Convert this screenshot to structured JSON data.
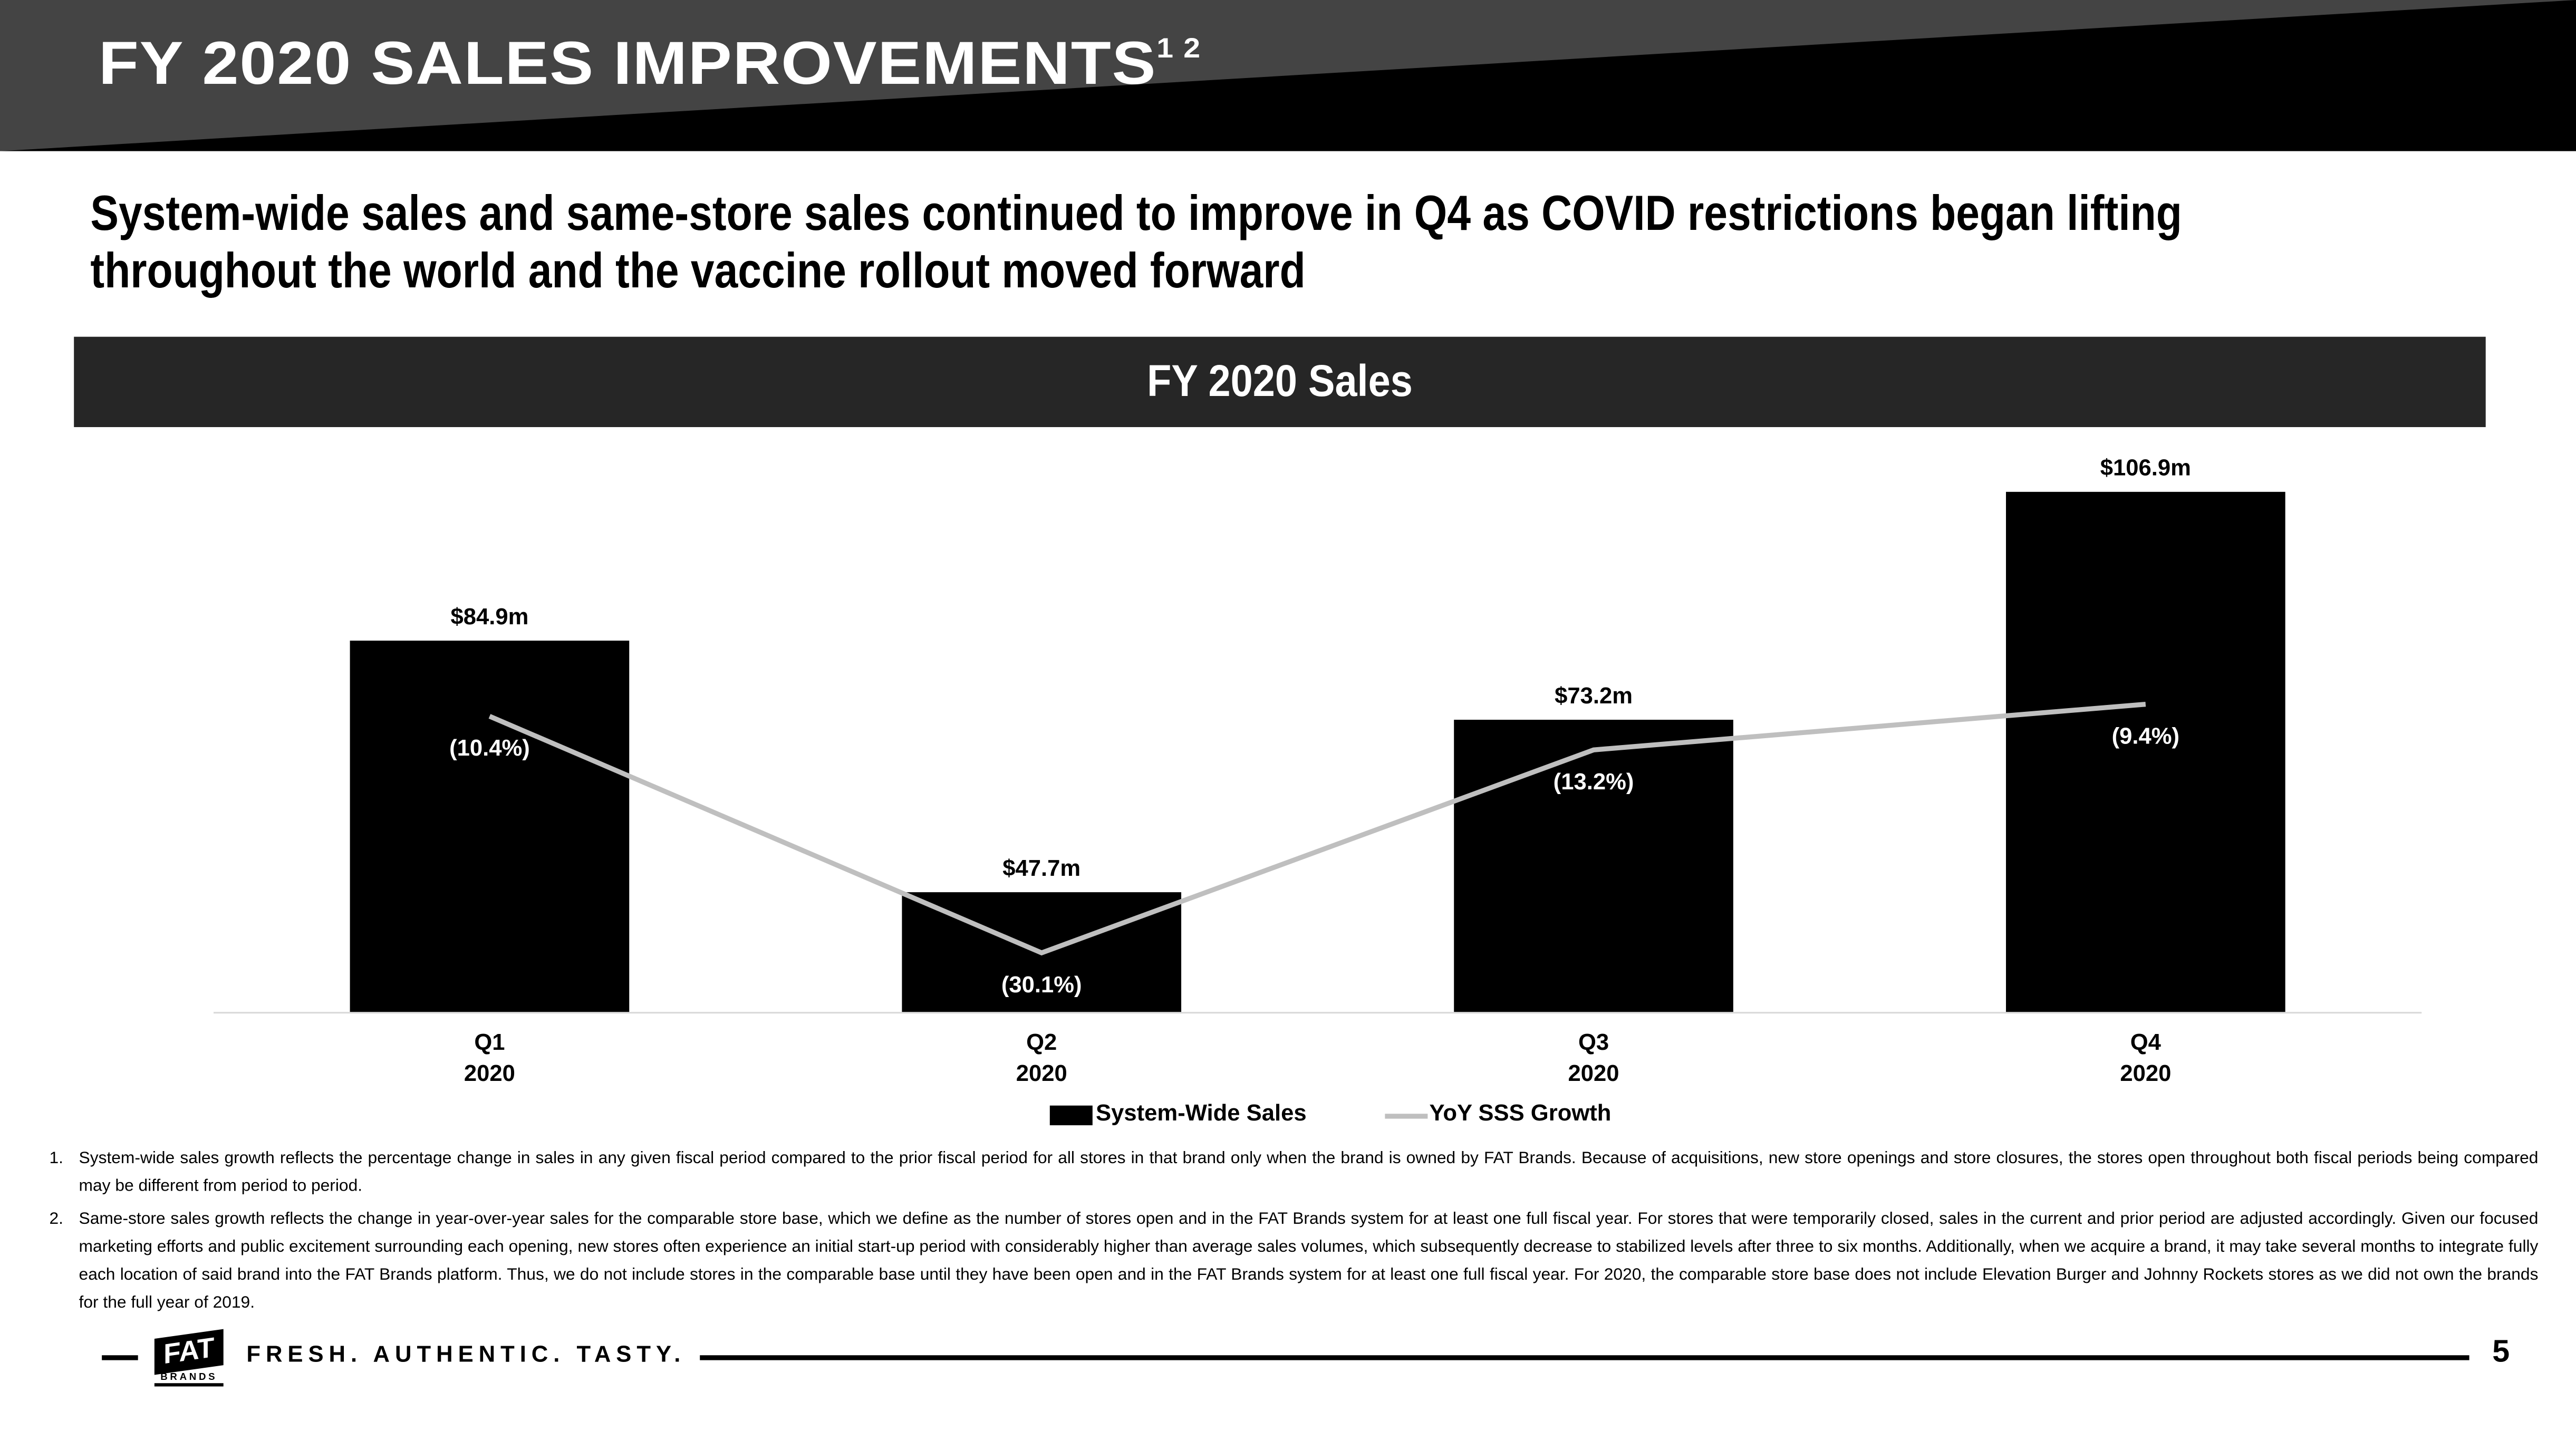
{
  "header": {
    "title": "FY 2020 SALES IMPROVEMENTS",
    "title_sup": "1 2"
  },
  "subtitle": {
    "line1": "System-wide sales and same-store sales continued to improve in Q4 as COVID restrictions began lifting",
    "line2": "throughout the world and the vaccine rollout moved forward"
  },
  "chart_data": {
    "type": "bar",
    "title": "FY 2020 Sales",
    "categories": [
      [
        "Q1",
        "2020"
      ],
      [
        "Q2",
        "2020"
      ],
      [
        "Q3",
        "2020"
      ],
      [
        "Q4",
        "2020"
      ]
    ],
    "series": [
      {
        "name": "System-Wide Sales",
        "type": "bar",
        "color": "#000000",
        "values": [
          84.9,
          47.7,
          73.2,
          106.9
        ],
        "labels": [
          "$84.9m",
          "$47.7m",
          "$73.2m",
          "$106.9m"
        ]
      },
      {
        "name": "YoY SSS Growth",
        "type": "line",
        "color": "#bfbfbf",
        "values": [
          -10.4,
          -30.1,
          -13.2,
          -9.4
        ],
        "labels": [
          "(10.4%)",
          "(30.1%)",
          "(13.2%)",
          "(9.4%)"
        ]
      }
    ],
    "ylim": [
      30,
      107
    ],
    "y2lim": [
      -44,
      5
    ],
    "legend": "bottom",
    "grid": false
  },
  "footnotes": [
    {
      "num": "1.",
      "text": "System-wide sales growth reflects the percentage change in sales in any given fiscal period compared to the prior fiscal period for all stores in that brand only when the brand is owned by FAT Brands.  Because of acquisitions, new store openings and store closures, the stores open throughout both fiscal periods being compared may be different from period to period."
    },
    {
      "num": "2.",
      "text": "Same-store sales growth reflects the change in year-over-year sales for the comparable store base, which we define as the number of stores open and in the FAT Brands system for at least one full fiscal year. For stores that were temporarily closed, sales in the current and prior period are adjusted accordingly. Given our focused marketing efforts and public excitement surrounding each opening, new stores often experience an initial start-up period with considerably higher than average sales volumes, which subsequently decrease to stabilized levels after three to six months.  Additionally, when we acquire a brand, it may take several months to integrate fully each location of said brand into the FAT Brands platform. Thus, we do not include stores in the comparable base until they have been open and in the FAT Brands system for at least one full fiscal year.  For 2020, the comparable store base does not include Elevation Burger and Johnny Rockets stores as we did not own the brands for the full year of 2019."
    }
  ],
  "footer": {
    "logo_top": "FAT",
    "logo_bottom": "BRANDS",
    "tagline": "FRESH. AUTHENTIC. TASTY.",
    "page": "5"
  }
}
